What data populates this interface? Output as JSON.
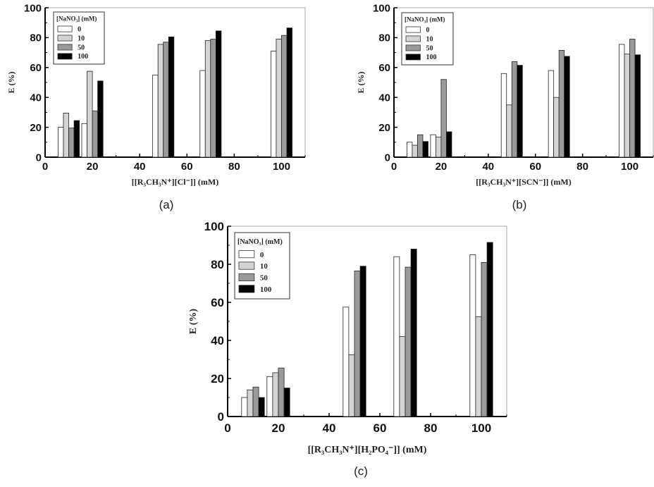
{
  "chart_data": [
    {
      "type": "bar",
      "panel_label": "(a)",
      "xlabel": "[[R₃CH₃N⁺][Cl⁻]] (mM)",
      "ylabel": "E (%)",
      "xlim": [
        0,
        110
      ],
      "ylim": [
        0,
        100
      ],
      "xticks": [
        "0",
        "20",
        "40",
        "60",
        "80",
        "100"
      ],
      "yticks": [
        "0",
        "20",
        "40",
        "60",
        "80",
        "100"
      ],
      "x": [
        10,
        20,
        50,
        70,
        100
      ],
      "legend_title": "[NaNO₃] (mM)",
      "legend_placement": "top-left",
      "series": [
        {
          "name": "0",
          "values": [
            20,
            22.5,
            55,
            58,
            71
          ]
        },
        {
          "name": "10",
          "values": [
            29.5,
            57.5,
            75.5,
            78,
            79
          ]
        },
        {
          "name": "50",
          "values": [
            19.5,
            31,
            77,
            79,
            81.5
          ]
        },
        {
          "name": "100",
          "values": [
            24.5,
            51,
            80.5,
            84.5,
            86.5
          ]
        }
      ]
    },
    {
      "type": "bar",
      "panel_label": "(b)",
      "xlabel": "[[R₃CH₃N⁺][SCN⁻]] (mM)",
      "ylabel": "E (%)",
      "xlim": [
        0,
        110
      ],
      "ylim": [
        0,
        100
      ],
      "xticks": [
        "0",
        "20",
        "40",
        "60",
        "80",
        "100"
      ],
      "yticks": [
        "0",
        "20",
        "40",
        "60",
        "80",
        "100"
      ],
      "x": [
        10,
        20,
        50,
        70,
        100
      ],
      "legend_title": "[NaNO₃] (mM)",
      "legend_placement": "top-left",
      "series": [
        {
          "name": "0",
          "values": [
            10,
            15,
            56,
            58,
            75.5
          ]
        },
        {
          "name": "10",
          "values": [
            8,
            13.5,
            35,
            40,
            69
          ]
        },
        {
          "name": "50",
          "values": [
            15,
            52,
            64,
            71.5,
            79
          ]
        },
        {
          "name": "100",
          "values": [
            10.5,
            17,
            61.5,
            67.5,
            68.5
          ]
        }
      ]
    },
    {
      "type": "bar",
      "panel_label": "(c)",
      "xlabel": "[[R₃CH₃N⁺][H₂PO₄⁻]] (mM)",
      "ylabel": "E (%)",
      "xlim": [
        0,
        110
      ],
      "ylim": [
        0,
        100
      ],
      "xticks": [
        "0",
        "20",
        "40",
        "60",
        "80",
        "100"
      ],
      "yticks": [
        "0",
        "20",
        "40",
        "60",
        "80",
        "100"
      ],
      "x": [
        10,
        20,
        50,
        70,
        100
      ],
      "legend_title": "[NaNO₃] (mM)",
      "legend_placement": "top-left",
      "series": [
        {
          "name": "0",
          "values": [
            10,
            21,
            57.5,
            84,
            85
          ]
        },
        {
          "name": "10",
          "values": [
            14,
            23,
            32.5,
            42,
            52.5
          ]
        },
        {
          "name": "50",
          "values": [
            15.5,
            25.5,
            76.5,
            78.5,
            81
          ]
        },
        {
          "name": "100",
          "values": [
            10,
            15,
            79,
            88,
            91.5
          ]
        }
      ]
    }
  ],
  "series_colors": [
    "#ffffff",
    "#d4d4d4",
    "#9a9a9a",
    "#000000"
  ]
}
